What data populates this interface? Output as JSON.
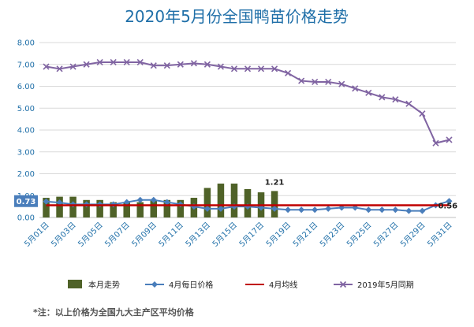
{
  "chart_data": {
    "title": "2020年5月份全国鸭苗价格走势",
    "type": "bar+line",
    "ylim": [
      0,
      8
    ],
    "yticks": [
      "0.00",
      "1.00",
      "2.00",
      "3.00",
      "4.00",
      "5.00",
      "6.00",
      "7.00",
      "8.00"
    ],
    "xtick_labels": [
      "5月01日",
      "5月03日",
      "5月05日",
      "5月07日",
      "5月09日",
      "5月11日",
      "5月13日",
      "5月15日",
      "5月17日",
      "5月19日",
      "5月21日",
      "5月23日",
      "5月25日",
      "5月27日",
      "5月29日",
      "5月31日"
    ],
    "days": [
      1,
      2,
      3,
      4,
      5,
      6,
      7,
      8,
      9,
      10,
      11,
      12,
      13,
      14,
      15,
      16,
      17,
      18,
      19,
      20,
      21,
      22,
      23,
      24,
      25,
      26,
      27,
      28,
      29,
      30,
      31
    ],
    "grid": true,
    "legend_position": "bottom",
    "series": [
      {
        "name": "本月走势",
        "kind": "bar",
        "color": "#4f6228",
        "values": [
          0.9,
          0.95,
          0.95,
          0.8,
          0.8,
          0.7,
          0.7,
          0.7,
          0.8,
          0.8,
          0.8,
          0.9,
          1.35,
          1.55,
          1.55,
          1.3,
          1.15,
          1.21,
          null,
          null,
          null,
          null,
          null,
          null,
          null,
          null,
          null,
          null,
          null,
          null,
          null
        ]
      },
      {
        "name": "4月每日价格",
        "kind": "line",
        "color": "#4a7ebb",
        "values": [
          0.73,
          0.68,
          0.6,
          0.6,
          0.6,
          0.6,
          0.7,
          0.8,
          0.8,
          0.7,
          0.6,
          0.5,
          0.4,
          0.4,
          0.5,
          0.5,
          0.45,
          0.4,
          0.35,
          0.35,
          0.35,
          0.4,
          0.45,
          0.45,
          0.35,
          0.35,
          0.35,
          0.3,
          0.3,
          0.56,
          0.75
        ]
      },
      {
        "name": "4月均线",
        "kind": "line",
        "color": "#c00000",
        "values": [
          0.56,
          0.56,
          0.56,
          0.56,
          0.56,
          0.56,
          0.56,
          0.56,
          0.56,
          0.56,
          0.56,
          0.56,
          0.56,
          0.56,
          0.56,
          0.56,
          0.56,
          0.56,
          0.56,
          0.56,
          0.56,
          0.56,
          0.56,
          0.56,
          0.56,
          0.56,
          0.56,
          0.56,
          0.56,
          0.56,
          0.56
        ]
      },
      {
        "name": "2019年5月同期",
        "kind": "line",
        "color": "#8064a2",
        "values": [
          6.9,
          6.8,
          6.9,
          7.0,
          7.1,
          7.1,
          7.1,
          7.1,
          6.95,
          6.95,
          7.0,
          7.05,
          7.0,
          6.9,
          6.8,
          6.8,
          6.8,
          6.8,
          6.6,
          6.25,
          6.2,
          6.2,
          6.1,
          5.9,
          5.7,
          5.5,
          5.4,
          5.2,
          4.75,
          3.4,
          3.55
        ]
      }
    ],
    "annotations": [
      {
        "text": "1.21",
        "day": 18,
        "value": 1.21
      },
      {
        "text": "0.73",
        "day": 1,
        "value": 0.73,
        "boxed": true
      },
      {
        "text": "0.56",
        "day": 31,
        "value": 0.56
      }
    ],
    "note": "*注：以上价格为全国九大主产区平均价格"
  }
}
